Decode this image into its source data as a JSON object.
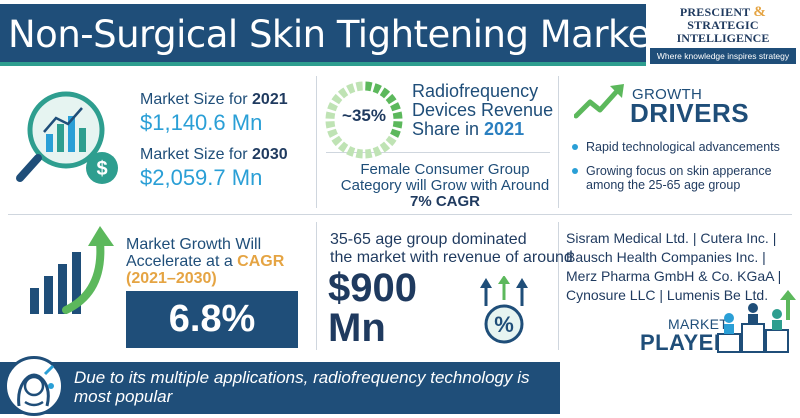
{
  "header": {
    "title": "Non-Surgical Skin Tightening Market"
  },
  "logo": {
    "line1_a": "PRESCIENT",
    "line1_amp": "&",
    "line1_b": "STRATEGIC",
    "line2": "INTELLIGENCE",
    "tagline": "Where knowledge inspires strategy"
  },
  "market_size": {
    "label_2021_prefix": "Market Size for ",
    "year_2021": "2021",
    "value_2021": "$1,140.6 Mn",
    "label_2030_prefix": "Market Size for ",
    "year_2030": "2030",
    "value_2030": "$2,059.7 Mn",
    "icon": "magnifier-chart-dollar-icon"
  },
  "radiofrequency": {
    "share": "~35%",
    "share_fraction": 0.35,
    "line1": "Radiofrequency",
    "line2": "Devices Revenue",
    "line3_prefix": "Share in ",
    "year": "2021"
  },
  "female_consumer": {
    "line1": "Female Consumer Group",
    "line2": "Category will Grow with Around",
    "cagr": "7% CAGR"
  },
  "growth_drivers": {
    "small": "GROWTH",
    "big": "DRIVERS",
    "icon": "trend-arrow-icon",
    "bullets": [
      "Rapid technological advancements",
      "Growing focus on skin apperance among the 25-65 age group"
    ]
  },
  "market_growth": {
    "line1": "Market Growth Will",
    "line2_prefix": "Accelerate at a ",
    "line2_emph": "CAGR",
    "line3": "(2021–2030)",
    "cagr": "6.8%",
    "icon": "growth-bars-arrow-icon"
  },
  "age_group": {
    "line1": "35-65 age group dominated",
    "line2": "the market with revenue of around",
    "value_line1": "$900",
    "value_line2": "Mn",
    "icon": "percent-arrows-icon"
  },
  "market_players": {
    "line1": "Sisram Medical Ltd. | Cutera Inc. |",
    "line2": "Bausch Health Companies Inc. |",
    "line3": "Merz Pharma GmbH & Co. KGaA |",
    "line4": "Cynosure LLC | Lumenis Be Ltd.",
    "small": "MARKET",
    "big": "PLAYERS",
    "icon": "podium-players-icon"
  },
  "footer": {
    "text": "Due to its multiple applications, radiofrequency technology is most popular",
    "icon": "face-treatment-icon"
  },
  "colors": {
    "navy": "#1f4e79",
    "teal": "#2e9e8f",
    "sky": "#2a9fd6",
    "green": "#5cb85c",
    "gold": "#e5a443"
  }
}
